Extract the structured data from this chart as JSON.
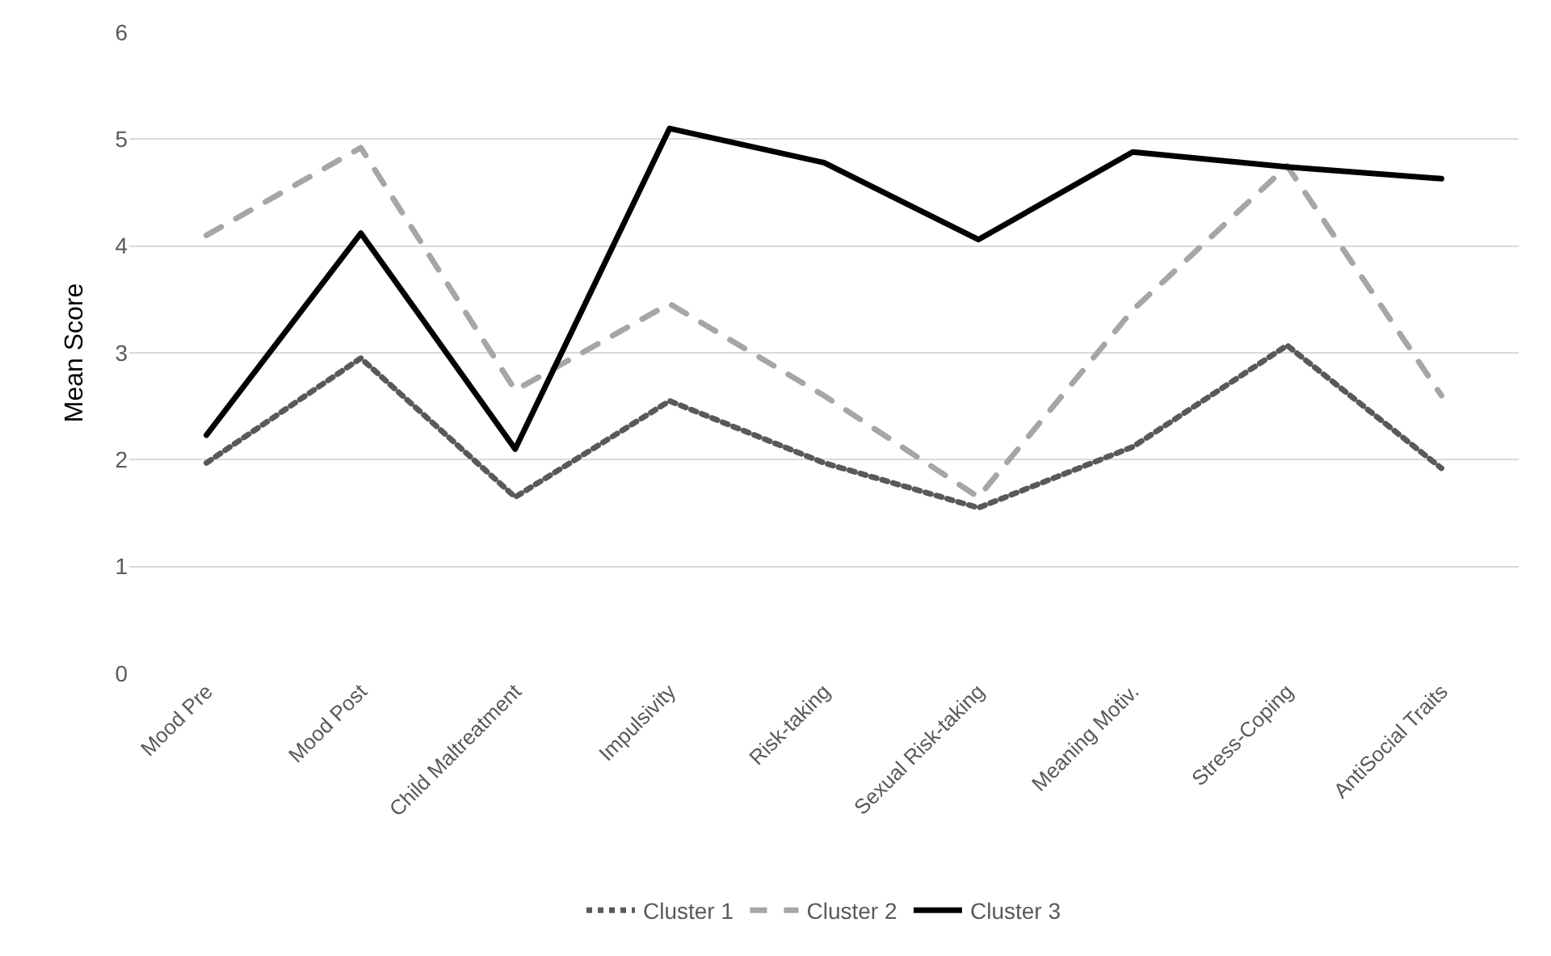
{
  "chart_data": {
    "type": "line",
    "ylabel": "Mean Score",
    "categories": [
      "Mood Pre",
      "Mood Post",
      "Child Maltreatment",
      "Impulsivity",
      "Risk-taking",
      "Sexual Risk-taking",
      "Meaning Motiv.",
      "Stress-Coping",
      "AntiSocial Traits"
    ],
    "series": [
      {
        "name": "Cluster 1",
        "color": "#595959",
        "line_style": "dotted",
        "values": [
          1.97,
          2.95,
          1.65,
          2.55,
          1.97,
          1.55,
          2.12,
          3.07,
          1.92
        ]
      },
      {
        "name": "Cluster 2",
        "color": "#a6a6a6",
        "line_style": "dashed",
        "values": [
          4.1,
          4.92,
          2.65,
          3.46,
          2.6,
          1.65,
          3.4,
          4.75,
          2.6
        ]
      },
      {
        "name": "Cluster 3",
        "color": "#000000",
        "line_style": "solid",
        "values": [
          2.23,
          4.12,
          2.1,
          5.1,
          4.78,
          4.06,
          4.88,
          4.74,
          4.63
        ]
      }
    ],
    "ylim": [
      0,
      6
    ],
    "yticks": [
      0,
      1,
      2,
      3,
      4,
      5,
      6
    ],
    "grid": "y",
    "legend": "bottom",
    "marker": "none"
  }
}
